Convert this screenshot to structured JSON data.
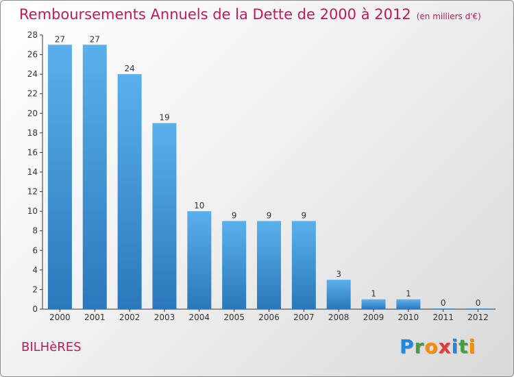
{
  "header": {
    "title": "Remboursements Annuels de la Dette de 2000 à 2012",
    "unit": "(en milliers d'€)"
  },
  "commune": "BILHèRES",
  "logo": {
    "text": "Proxiti",
    "letters": [
      {
        "char": "P",
        "color": "#1e88e5"
      },
      {
        "char": "r",
        "color": "#43a047"
      },
      {
        "char": "o",
        "color": "#fb8c00"
      },
      {
        "char": "x",
        "color": "#e53935"
      },
      {
        "char": "i",
        "color": "#1e88e5"
      },
      {
        "char": "t",
        "color": "#43a047"
      },
      {
        "char": "i",
        "color": "#fb8c00"
      }
    ]
  },
  "colors": {
    "bar_top": "#5ab0ec",
    "bar_bottom": "#2a78bb",
    "title": "#c2185b"
  },
  "chart_data": {
    "type": "bar",
    "title": "Remboursements Annuels de la Dette de 2000 à 2012",
    "subtitle": "(en milliers d'€)",
    "categories": [
      "2000",
      "2001",
      "2002",
      "2003",
      "2004",
      "2005",
      "2006",
      "2007",
      "2008",
      "2009",
      "2010",
      "2011",
      "2012"
    ],
    "values": [
      27,
      27,
      24,
      19,
      10,
      9,
      9,
      9,
      3,
      1,
      1,
      0,
      0
    ],
    "ylim": [
      0,
      28
    ],
    "yticks": [
      0,
      2,
      4,
      6,
      8,
      10,
      12,
      14,
      16,
      18,
      20,
      22,
      24,
      26,
      28
    ],
    "grid": false,
    "legend": "none"
  }
}
